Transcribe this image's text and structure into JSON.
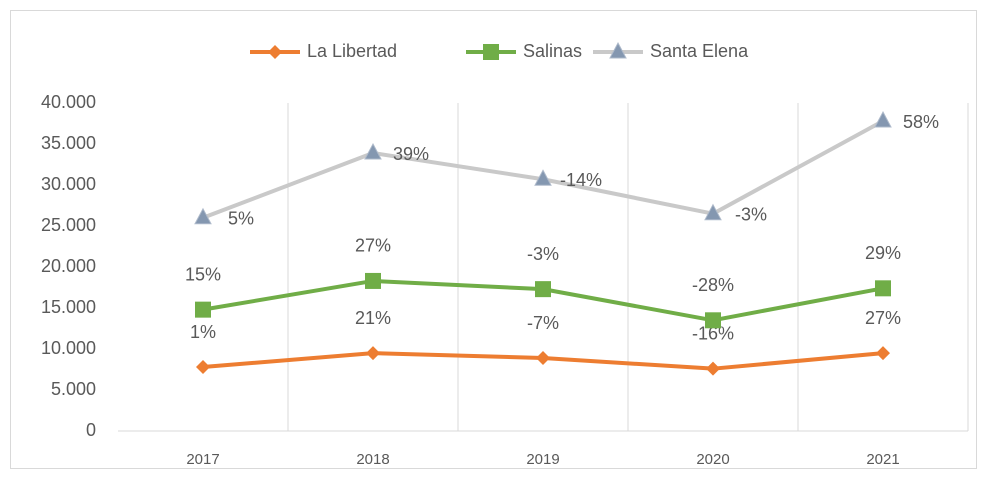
{
  "chart_data": {
    "type": "line",
    "categories": [
      "2017",
      "2018",
      "2019",
      "2020",
      "2021"
    ],
    "series": [
      {
        "name": "La Libertad",
        "color": "#ed7d31",
        "marker": "diamond",
        "marker_color": "#ed7d31",
        "values": [
          7800,
          9500,
          8900,
          7600,
          9500
        ],
        "point_labels": [
          "1%",
          "21%",
          "-7%",
          "-16%",
          "27%"
        ]
      },
      {
        "name": "Salinas",
        "color": "#70ad47",
        "marker": "square",
        "marker_color": "#70ad47",
        "values": [
          14800,
          18300,
          17300,
          13500,
          17400
        ],
        "point_labels": [
          "15%",
          "27%",
          "-3%",
          "-28%",
          "29%"
        ]
      },
      {
        "name": "Santa Elena",
        "color": "#c9c9c9",
        "marker": "triangle",
        "marker_color": "#8497b0",
        "values": [
          26000,
          33900,
          30700,
          26500,
          37800
        ],
        "point_labels": [
          "5%",
          "39%",
          "-14%",
          "-3%",
          "58%"
        ]
      }
    ],
    "ylim": [
      0,
      40000
    ],
    "yticks": [
      0,
      {
        "value": 5000,
        "label": "5.000"
      },
      {
        "value": 10000,
        "label": "10.000"
      },
      {
        "value": 15000,
        "label": "15.000"
      },
      {
        "value": 20000,
        "label": "20.000"
      },
      {
        "value": 25000,
        "label": "25.000"
      },
      {
        "value": 30000,
        "label": "30.000"
      },
      {
        "value": 35000,
        "label": "35.000"
      },
      {
        "value": 40000,
        "label": "40.000"
      }
    ],
    "legend": "top",
    "grid": "vertical"
  }
}
